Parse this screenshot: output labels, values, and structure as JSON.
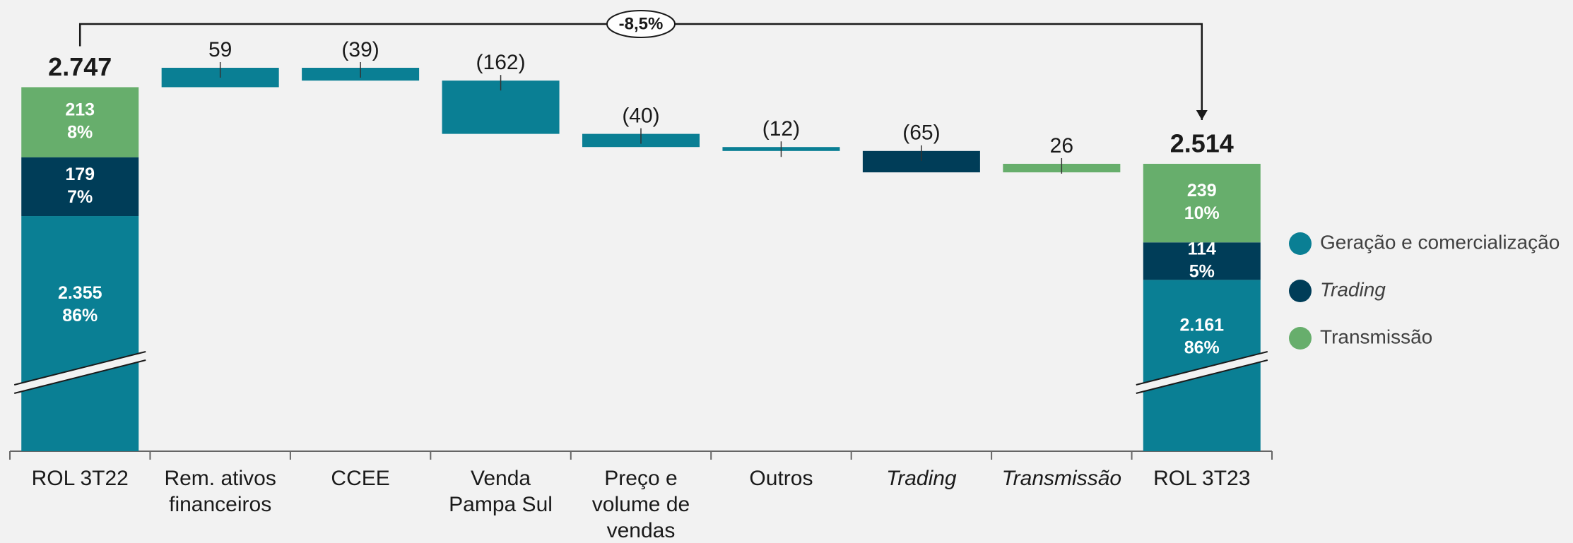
{
  "chart_data": {
    "type": "waterfall",
    "categories": [
      "ROL 3T22",
      "Rem. ativos financeiros",
      "CCEE",
      "Venda Pampa Sul",
      "Preço e volume de vendas",
      "Outros",
      "Trading",
      "Transmissão",
      "ROL 3T23"
    ],
    "totals": [
      2747,
      null,
      null,
      null,
      null,
      null,
      null,
      null,
      2514
    ],
    "totals_labels": [
      "2.747",
      null,
      null,
      null,
      null,
      null,
      null,
      null,
      "2.514"
    ],
    "series": [
      {
        "name": "Geração e comercialização",
        "color": "#0a7f94",
        "values": [
          2355,
          59,
          -39,
          -162,
          -40,
          -12,
          null,
          null,
          2161
        ],
        "value_labels": [
          "2.355",
          "59",
          "(39)",
          "(162)",
          "(40)",
          "(12)",
          null,
          null,
          "2.161"
        ],
        "shares": [
          86,
          null,
          null,
          null,
          null,
          null,
          null,
          null,
          86
        ],
        "share_labels": [
          "86%",
          null,
          null,
          null,
          null,
          null,
          null,
          null,
          "86%"
        ]
      },
      {
        "name": "Trading",
        "color": "#003d58",
        "values": [
          179,
          null,
          null,
          null,
          null,
          null,
          -65,
          null,
          114
        ],
        "value_labels": [
          "179",
          null,
          null,
          null,
          null,
          null,
          "(65)",
          null,
          "114"
        ],
        "shares": [
          7,
          null,
          null,
          null,
          null,
          null,
          null,
          null,
          5
        ],
        "share_labels": [
          "7%",
          null,
          null,
          null,
          null,
          null,
          null,
          null,
          "5%"
        ]
      },
      {
        "name": "Transmissão",
        "color": "#67ae6c",
        "values": [
          213,
          null,
          null,
          null,
          null,
          null,
          null,
          26,
          239
        ],
        "value_labels": [
          "213",
          null,
          null,
          null,
          null,
          null,
          null,
          "26",
          "239"
        ],
        "shares": [
          8,
          null,
          null,
          null,
          null,
          null,
          null,
          null,
          10
        ],
        "share_labels": [
          "8%",
          null,
          null,
          null,
          null,
          null,
          null,
          null,
          "10%"
        ]
      }
    ],
    "annotation": "-8,5%",
    "ylim": [
      1640,
      2850
    ],
    "axis_break": true,
    "legend": "right"
  }
}
